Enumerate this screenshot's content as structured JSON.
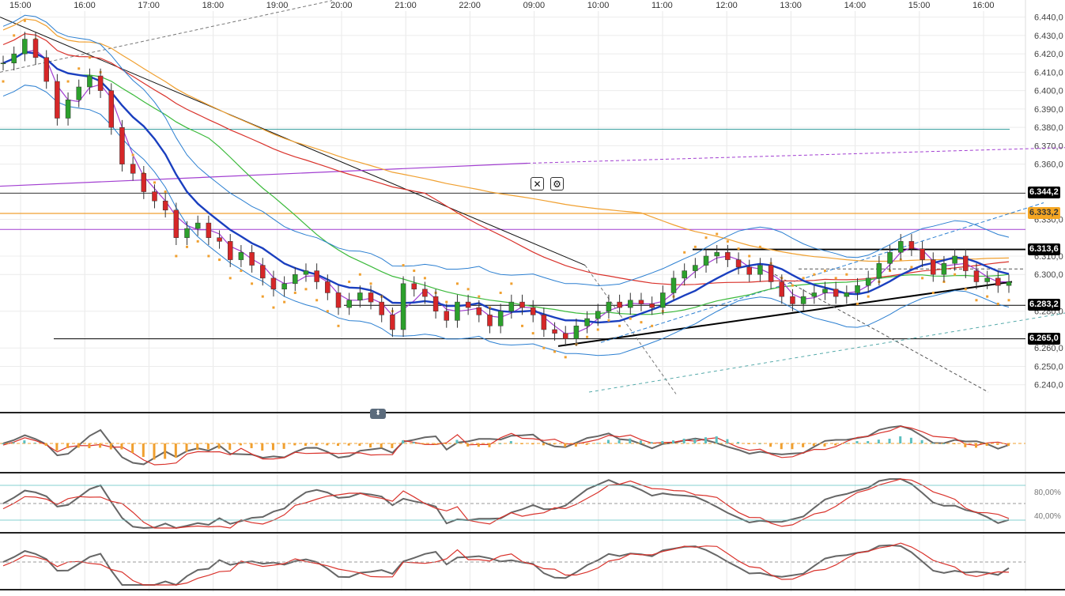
{
  "chart_data": {
    "type": "candlestick",
    "instrument_unit": "price",
    "time_labels": [
      "15:00",
      "16:00",
      "17:00",
      "18:00",
      "19:00",
      "20:00",
      "21:00",
      "22:00",
      "09:00",
      "10:00",
      "11:00",
      "12:00",
      "13:00",
      "14:00",
      "15:00",
      "16:00"
    ],
    "price_axis": {
      "min": 6.23,
      "max": 6.445,
      "ticks": [
        "6.440,0",
        "6.430,0",
        "6.420,0",
        "6.410,0",
        "6.400,0",
        "6.390,0",
        "6.380,0",
        "6.370,0",
        "6.360,0",
        "6.330,0",
        "6.310,0",
        "6.300,0",
        "6.280,0",
        "6.260,0",
        "6.250,0",
        "6.240,0"
      ],
      "tick_values": [
        6.44,
        6.43,
        6.42,
        6.41,
        6.4,
        6.39,
        6.38,
        6.37,
        6.36,
        6.33,
        6.31,
        6.3,
        6.28,
        6.26,
        6.25,
        6.24
      ]
    },
    "price_tags": [
      {
        "label": "6.344,2",
        "value": 6.3442,
        "bg": "#000000",
        "fg": "#ffffff"
      },
      {
        "label": "6.333,2",
        "value": 6.3332,
        "bg": "#f5a623",
        "fg": "#333333"
      },
      {
        "label": "6.313,6",
        "value": 6.3136,
        "bg": "#000000",
        "fg": "#ffffff"
      },
      {
        "label": "6.283,2",
        "value": 6.2832,
        "bg": "#000000",
        "fg": "#ffffff"
      },
      {
        "label": "6.265,0",
        "value": 6.265,
        "bg": "#000000",
        "fg": "#ffffff"
      }
    ],
    "close_path": [
      6.415,
      6.42,
      6.428,
      6.418,
      6.405,
      6.385,
      6.395,
      6.402,
      6.408,
      6.4,
      6.38,
      6.36,
      6.355,
      6.345,
      6.34,
      6.335,
      6.32,
      6.325,
      6.328,
      6.32,
      6.318,
      6.308,
      6.312,
      6.305,
      6.298,
      6.292,
      6.295,
      6.3,
      6.302,
      6.296,
      6.29,
      6.282,
      6.286,
      6.29,
      6.285,
      6.278,
      6.27,
      6.295,
      6.292,
      6.288,
      6.28,
      6.275,
      6.285,
      6.282,
      6.278,
      6.272,
      6.28,
      6.285,
      6.282,
      6.278,
      6.27,
      6.268,
      6.265,
      6.272,
      6.276,
      6.28,
      6.285,
      6.282,
      6.286,
      6.284,
      6.282,
      6.29,
      6.298,
      6.302,
      6.305,
      6.31,
      6.312,
      6.308,
      6.304,
      6.3,
      6.305,
      6.296,
      6.288,
      6.284,
      6.288,
      6.29,
      6.292,
      6.288,
      6.29,
      6.294,
      6.298,
      6.306,
      6.312,
      6.318,
      6.314,
      6.308,
      6.3,
      6.306,
      6.31,
      6.302,
      6.296,
      6.298,
      6.294,
      6.296
    ],
    "indicator_labels": [
      "80,00%",
      "40,00%"
    ],
    "toolbar": {
      "close_symbol": "✕",
      "settings_symbol": "⚙",
      "handle_symbol": "⬍"
    },
    "colors": {
      "up": "#2ca02c",
      "down": "#d62728",
      "blue": "#1a3fbf",
      "bb": "#2b7fd1",
      "orange": "#f0a030",
      "red": "#d9322b",
      "green": "#3cba3c",
      "purple": "#a23fd1"
    }
  }
}
